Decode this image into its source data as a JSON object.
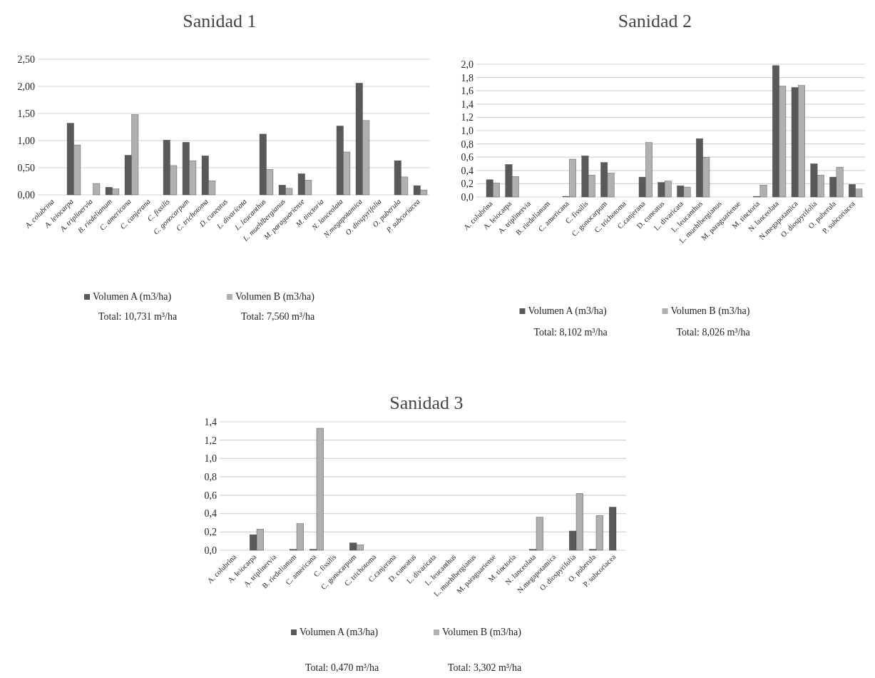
{
  "chart_data": [
    {
      "type": "bar",
      "title": "Sanidad 1",
      "categories": [
        "A. colubrina",
        "A. leiocarpa",
        "A. triplinervia",
        "B. riedelianum",
        "C. americana",
        "C. canjerana",
        "C. fissilis",
        "C. gonocarpum",
        "C. trichotoma",
        "D. cuneatus",
        "L. divaricata",
        "L. leucanthus",
        "L. muehlbergianus",
        "M. paraguariense",
        "M. tinctoria",
        "N. lanceolata",
        "N.megapotamica",
        "O. diospyrifolia",
        "O. puberula",
        "P. subcoriacea"
      ],
      "series": [
        {
          "name": "Volumen A (m3/ha)",
          "color": "#595959",
          "values": [
            null,
            1.32,
            null,
            0.14,
            0.73,
            null,
            1.01,
            0.97,
            0.72,
            null,
            null,
            1.12,
            0.18,
            0.39,
            null,
            1.27,
            2.06,
            null,
            0.63,
            0.17
          ]
        },
        {
          "name": "Volumen B (m3/ha)",
          "color": "#b0b0b0",
          "values": [
            null,
            0.92,
            0.21,
            0.11,
            1.48,
            null,
            0.54,
            0.63,
            0.26,
            null,
            null,
            0.47,
            0.12,
            0.27,
            null,
            0.79,
            1.37,
            null,
            0.33,
            0.09
          ]
        }
      ],
      "ylim": [
        0,
        2.5
      ],
      "yticks": [
        {
          "value": 0,
          "label": "0,00"
        },
        {
          "value": 0.5,
          "label": "0,50"
        },
        {
          "value": 1,
          "label": "1,00"
        },
        {
          "value": 1.5,
          "label": "1,50"
        },
        {
          "value": 2,
          "label": "2,00"
        },
        {
          "value": 2.5,
          "label": "2,50"
        }
      ],
      "grid": "y",
      "legend": "bottom",
      "annotations": [
        "Total: 10,731 m³/ha",
        "Total: 7,560 m³/ha"
      ]
    },
    {
      "type": "bar",
      "title": "Sanidad 2",
      "categories": [
        "A. colubrina",
        "A. leiocarpa",
        "A. triplinervia",
        "B. riedelianum",
        "C. americana",
        "C. fissilis",
        "C. gonocarpum",
        "C. trichotoma",
        "C.canjerana",
        "D. cuneatus",
        "L. divaricata",
        "L. leucanthus",
        "L. muehlbergianus",
        "M. paraguariense",
        "M. tinctoria",
        "N. lanceolata",
        "N.megapotamica",
        "O. diospyrifolia",
        "O. puberula",
        "P. subcoriacea"
      ],
      "series": [
        {
          "name": "Volumen A (m3/ha)",
          "color": "#595959",
          "values": [
            0.26,
            0.49,
            null,
            null,
            0.01,
            0.62,
            0.52,
            null,
            0.3,
            0.22,
            0.17,
            0.88,
            null,
            null,
            0.01,
            1.98,
            1.65,
            0.5,
            0.3,
            0.19
          ]
        },
        {
          "name": "Volumen B (m3/ha)",
          "color": "#b0b0b0",
          "values": [
            0.21,
            0.31,
            null,
            null,
            0.57,
            0.33,
            0.36,
            null,
            0.82,
            0.24,
            0.15,
            0.6,
            null,
            null,
            0.18,
            1.67,
            1.68,
            0.33,
            0.45,
            0.12
          ]
        }
      ],
      "ylim": [
        0,
        2
      ],
      "yticks": [
        {
          "value": 0,
          "label": "0,0"
        },
        {
          "value": 0.2,
          "label": "0,2"
        },
        {
          "value": 0.4,
          "label": "0,4"
        },
        {
          "value": 0.6,
          "label": "0,6"
        },
        {
          "value": 0.8,
          "label": "0,8"
        },
        {
          "value": 1,
          "label": "1,0"
        },
        {
          "value": 1.2,
          "label": "1,2"
        },
        {
          "value": 1.4,
          "label": "1,4"
        },
        {
          "value": 1.6,
          "label": "1,6"
        },
        {
          "value": 1.8,
          "label": "1,8"
        },
        {
          "value": 2,
          "label": "2,0"
        }
      ],
      "grid": "y",
      "legend": "bottom",
      "annotations": [
        "Total: 8,102 m³/ha",
        "Total: 8,026 m³/ha"
      ]
    },
    {
      "type": "bar",
      "title": "Sanidad  3",
      "categories": [
        "A. colubrina",
        "A. leiocarpa",
        "A. triplinervia",
        "B. riedelianum",
        "C. americana",
        "C. fissilis",
        "C. gonocarpum",
        "C. trichotoma",
        "C.canjerana",
        "D. cuneatus",
        "L. divaricata",
        "L. leucanthus",
        "L. muehlbergianus",
        "M. paraguariense",
        "M. tinctoria",
        "N. lanceolata",
        "N.megapotamica",
        "O. diospyrifolia",
        "O. puberula",
        "P. subcoriacea"
      ],
      "series": [
        {
          "name": "Volumen A (m3/ha)",
          "color": "#595959",
          "values": [
            null,
            0.17,
            null,
            0.01,
            0.01,
            null,
            0.08,
            null,
            null,
            null,
            null,
            null,
            null,
            null,
            null,
            0.01,
            null,
            0.21,
            0.01,
            0.47
          ]
        },
        {
          "name": "Volumen B (m3/ha)",
          "color": "#b0b0b0",
          "values": [
            null,
            0.23,
            null,
            0.29,
            1.33,
            null,
            0.06,
            null,
            null,
            null,
            null,
            null,
            null,
            null,
            null,
            0.36,
            null,
            0.62,
            0.38,
            null
          ]
        }
      ],
      "ylim": [
        0,
        1.4
      ],
      "yticks": [
        {
          "value": 0,
          "label": "0,0"
        },
        {
          "value": 0.2,
          "label": "0,2"
        },
        {
          "value": 0.4,
          "label": "0,4"
        },
        {
          "value": 0.6,
          "label": "0,6"
        },
        {
          "value": 0.8,
          "label": "0,8"
        },
        {
          "value": 1,
          "label": "1,0"
        },
        {
          "value": 1.2,
          "label": "1,2"
        },
        {
          "value": 1.4,
          "label": "1,4"
        }
      ],
      "grid": "y",
      "legend": "bottom",
      "annotations": [
        "Total: 0,470 m³/ha",
        "Total: 3,302 m³/ha"
      ]
    }
  ]
}
